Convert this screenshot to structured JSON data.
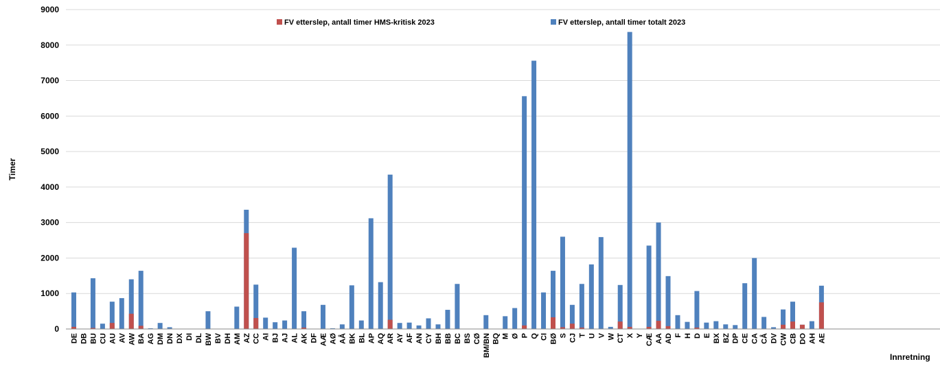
{
  "chart_data": {
    "type": "bar",
    "stacked": true,
    "ylabel": "Timer",
    "xlabel": "Innretning",
    "ylim": [
      0,
      9000
    ],
    "yticks": [
      0,
      1000,
      2000,
      3000,
      4000,
      5000,
      6000,
      7000,
      8000,
      9000
    ],
    "grid": true,
    "legend_position": "top",
    "categories": [
      "DE",
      "DB",
      "BU",
      "CU",
      "AU",
      "AV",
      "AW",
      "BA",
      "AG",
      "DM",
      "DN",
      "DX",
      "DI",
      "DL",
      "BW",
      "BV",
      "DH",
      "AM",
      "AZ",
      "CC",
      "AI",
      "BJ",
      "AJ",
      "AL",
      "AK",
      "DF",
      "AÆ",
      "AØ",
      "AÅ",
      "BK",
      "BL",
      "AP",
      "AQ",
      "AR",
      "AY",
      "AF",
      "AN",
      "CY",
      "BH",
      "BB",
      "BC",
      "BS",
      "CØ",
      "BM/BN",
      "BQ",
      "M",
      "Ø",
      "P",
      "Q",
      "CI",
      "BØ",
      "S",
      "CJ",
      "T",
      "U",
      "V",
      "W",
      "CT",
      "X",
      "Y",
      "CÆ",
      "AA",
      "AD",
      "F",
      "H",
      "D",
      "E",
      "BX",
      "BZ",
      "DP",
      "CE",
      "CA",
      "CÅ",
      "DV",
      "CW",
      "CB",
      "DO",
      "AH",
      "AE"
    ],
    "series": [
      {
        "name": "FV etterslep, antall timer HMS-kritisk  2023",
        "color": "#c0504d",
        "values": [
          60,
          0,
          30,
          0,
          170,
          0,
          430,
          90,
          0,
          0,
          0,
          0,
          0,
          0,
          0,
          0,
          0,
          0,
          2700,
          310,
          0,
          0,
          0,
          0,
          40,
          0,
          0,
          0,
          0,
          0,
          0,
          0,
          0,
          260,
          0,
          0,
          0,
          0,
          0,
          0,
          0,
          0,
          0,
          0,
          0,
          0,
          0,
          100,
          0,
          0,
          330,
          50,
          150,
          40,
          0,
          0,
          0,
          210,
          60,
          0,
          60,
          230,
          80,
          0,
          0,
          40,
          0,
          0,
          0,
          0,
          0,
          0,
          0,
          0,
          120,
          210,
          120,
          0,
          750
        ]
      },
      {
        "name": "FV etterslep, antall timer totalt 2023",
        "color": "#4f81bd",
        "values": [
          1030,
          0,
          1430,
          150,
          770,
          870,
          1400,
          1640,
          20,
          170,
          50,
          0,
          0,
          0,
          500,
          0,
          0,
          630,
          3360,
          1250,
          320,
          190,
          240,
          2290,
          500,
          0,
          680,
          20,
          130,
          1230,
          240,
          3120,
          1320,
          4350,
          170,
          180,
          100,
          300,
          130,
          540,
          1270,
          0,
          0,
          390,
          0,
          360,
          590,
          6560,
          7560,
          1030,
          1640,
          2600,
          680,
          1270,
          1820,
          2590,
          60,
          1240,
          8370,
          0,
          2350,
          3000,
          1490,
          390,
          200,
          1070,
          180,
          220,
          130,
          110,
          1290,
          2000,
          340,
          50,
          550,
          770,
          120,
          220,
          1220
        ]
      }
    ]
  }
}
